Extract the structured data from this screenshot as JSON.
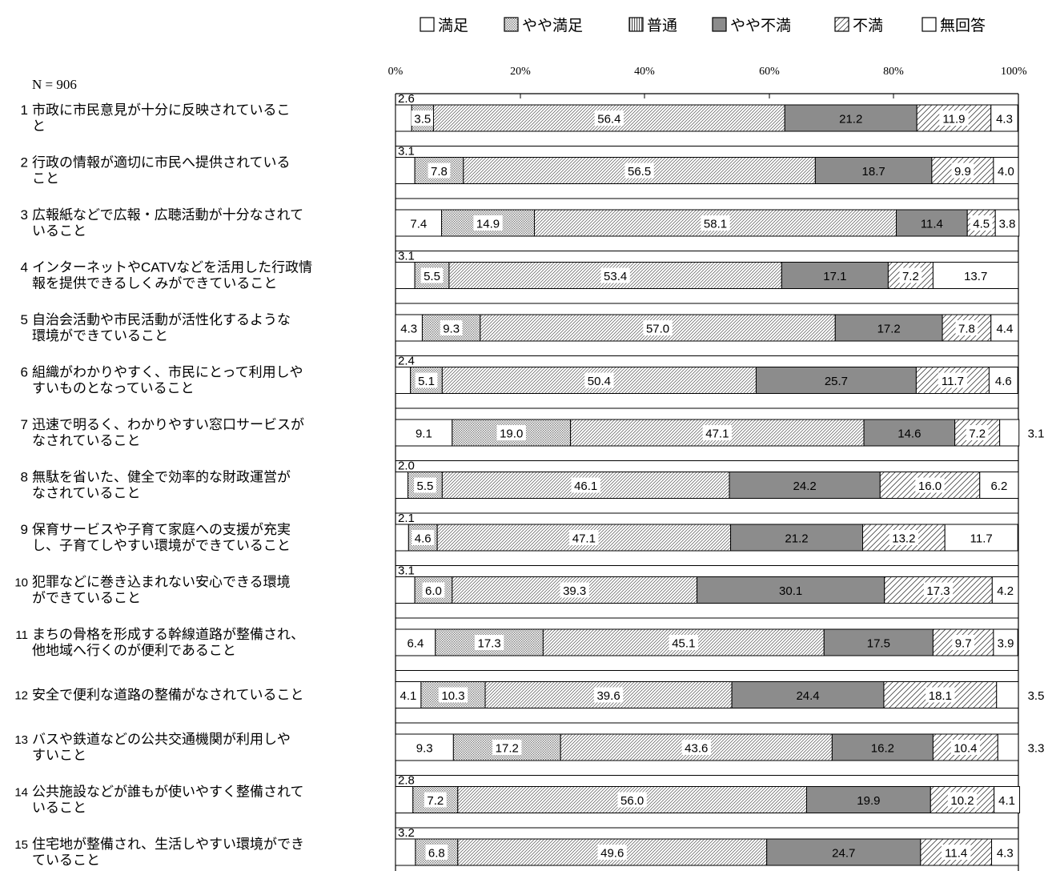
{
  "n_label": "N = 906",
  "chart_data": {
    "type": "bar",
    "orientation": "horizontal",
    "stacked": true,
    "xlim": [
      0,
      100
    ],
    "x_ticks": [
      "0%",
      "20%",
      "40%",
      "60%",
      "80%",
      "100%"
    ],
    "legend_position": "top",
    "series": [
      {
        "name": "満足",
        "color": "#ffffff",
        "pattern": "none"
      },
      {
        "name": "やや満足",
        "color": "#d9d9d9",
        "pattern": "dots"
      },
      {
        "name": "普通",
        "color": "#ffffff",
        "pattern": "diag-dense"
      },
      {
        "name": "やや不満",
        "color": "#8c8c8c",
        "pattern": "solid"
      },
      {
        "name": "不満",
        "color": "#ffffff",
        "pattern": "diag-wide"
      },
      {
        "name": "無回答",
        "color": "#ffffff",
        "pattern": "none"
      }
    ],
    "categories": [
      {
        "num": "1",
        "lines": [
          "市政に市民意見が十分に反映されているこ",
          "と"
        ],
        "values": [
          2.6,
          3.5,
          56.4,
          21.2,
          11.9,
          4.3
        ]
      },
      {
        "num": "2",
        "lines": [
          "行政の情報が適切に市民へ提供されている",
          "こと"
        ],
        "values": [
          3.1,
          7.8,
          56.5,
          18.7,
          9.9,
          4.0
        ]
      },
      {
        "num": "3",
        "lines": [
          "広報紙などで広報・広聴活動が十分なされて",
          "いること"
        ],
        "values": [
          7.4,
          14.9,
          58.1,
          11.4,
          4.5,
          3.8
        ]
      },
      {
        "num": "4",
        "lines": [
          "インターネットやCATVなどを活用した行政情",
          "報を提供できるしくみができていること"
        ],
        "values": [
          3.1,
          5.5,
          53.4,
          17.1,
          7.2,
          13.7
        ]
      },
      {
        "num": "5",
        "lines": [
          "自治会活動や市民活動が活性化するような",
          "環境ができていること"
        ],
        "values": [
          4.3,
          9.3,
          57.0,
          17.2,
          7.8,
          4.4
        ]
      },
      {
        "num": "6",
        "lines": [
          "組織がわかりやすく、市民にとって利用しや",
          "すいものとなっていること"
        ],
        "values": [
          2.4,
          5.1,
          50.4,
          25.7,
          11.7,
          4.6
        ]
      },
      {
        "num": "7",
        "lines": [
          "迅速で明るく、わかりやすい窓口サービスが",
          "なされていること"
        ],
        "values": [
          9.1,
          19.0,
          47.1,
          14.6,
          7.2,
          3.1
        ]
      },
      {
        "num": "8",
        "lines": [
          "無駄を省いた、健全で効率的な財政運営が",
          "なされていること"
        ],
        "values": [
          2.0,
          5.5,
          46.1,
          24.2,
          16.0,
          6.2
        ]
      },
      {
        "num": "9",
        "lines": [
          "保育サービスや子育て家庭への支援が充実",
          "し、子育てしやすい環境ができていること"
        ],
        "values": [
          2.1,
          4.6,
          47.1,
          21.2,
          13.2,
          11.7
        ]
      },
      {
        "num": "10",
        "lines": [
          "犯罪などに巻き込まれない安心できる環境",
          "ができていること"
        ],
        "values": [
          3.1,
          6.0,
          39.3,
          30.1,
          17.3,
          4.2
        ]
      },
      {
        "num": "11",
        "lines": [
          "まちの骨格を形成する幹線道路が整備され、",
          "他地域へ行くのが便利であること"
        ],
        "values": [
          6.4,
          17.3,
          45.1,
          17.5,
          9.7,
          3.9
        ]
      },
      {
        "num": "12",
        "lines": [
          "安全で便利な道路の整備がなされていること"
        ],
        "values": [
          4.1,
          10.3,
          39.6,
          24.4,
          18.1,
          3.5
        ]
      },
      {
        "num": "13",
        "lines": [
          "バスや鉄道などの公共交通機関が利用しや",
          "すいこと"
        ],
        "values": [
          9.3,
          17.2,
          43.6,
          16.2,
          10.4,
          3.3
        ]
      },
      {
        "num": "14",
        "lines": [
          "公共施設などが誰もが使いやすく整備されて",
          "いること"
        ],
        "values": [
          2.8,
          7.2,
          56.0,
          19.9,
          10.2,
          4.1
        ]
      },
      {
        "num": "15",
        "lines": [
          "住宅地が整備され、生活しやすい環境ができ",
          "ていること"
        ],
        "values": [
          3.2,
          6.8,
          49.6,
          24.7,
          11.4,
          4.3
        ]
      }
    ]
  }
}
